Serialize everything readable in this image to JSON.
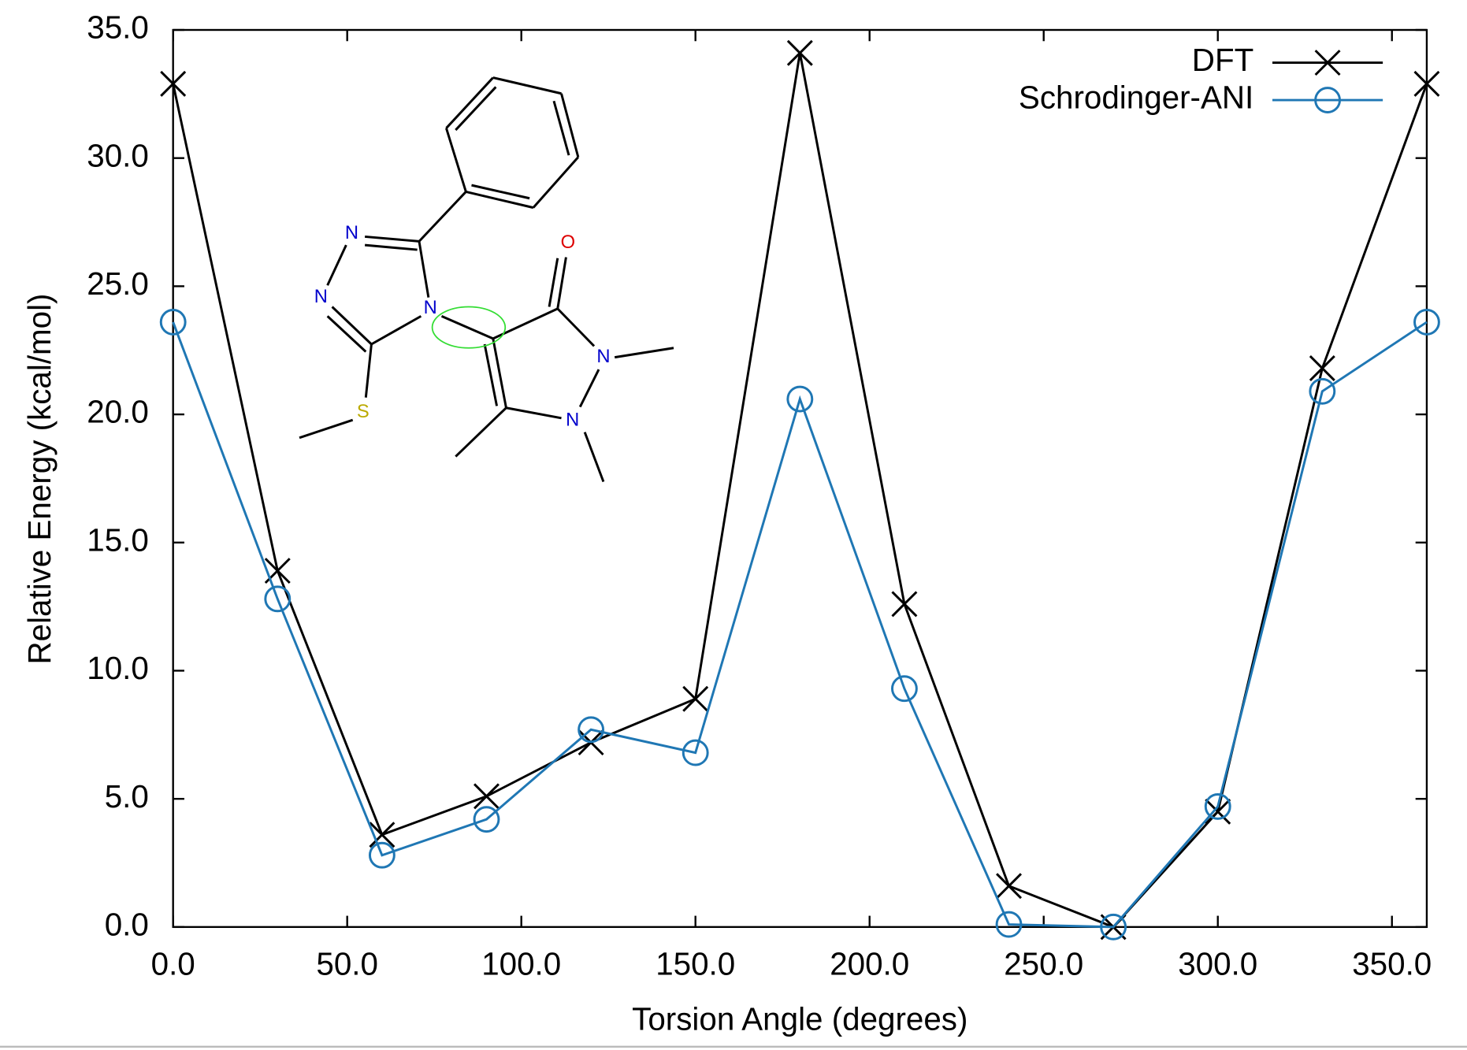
{
  "chart_data": {
    "type": "line",
    "x_label": "Torsion Angle (degrees)",
    "y_label": "Relative Energy (kcal/mol)",
    "x": [
      0,
      30,
      60,
      90,
      120,
      150,
      180,
      210,
      240,
      270,
      300,
      330,
      360
    ],
    "series": [
      {
        "name": "DFT",
        "color": "#000000",
        "marker": "x",
        "values": [
          32.9,
          13.9,
          3.6,
          5.1,
          7.2,
          8.9,
          34.1,
          12.6,
          1.6,
          0.0,
          4.5,
          21.8,
          32.9
        ]
      },
      {
        "name": "Schrodinger-ANI",
        "color": "#1f77b4",
        "marker": "circle",
        "values": [
          23.6,
          12.8,
          2.8,
          4.2,
          7.7,
          6.8,
          20.6,
          9.3,
          0.1,
          0.0,
          4.7,
          20.9,
          23.6
        ]
      }
    ],
    "xlim": [
      0,
      360
    ],
    "ylim": [
      0,
      35
    ],
    "xticks": [
      {
        "value": 0,
        "label": "0.0"
      },
      {
        "value": 50,
        "label": "50.0"
      },
      {
        "value": 100,
        "label": "100.0"
      },
      {
        "value": 150,
        "label": "150.0"
      },
      {
        "value": 200,
        "label": "200.0"
      },
      {
        "value": 250,
        "label": "250.0"
      },
      {
        "value": 300,
        "label": "300.0"
      },
      {
        "value": 350,
        "label": "350.0"
      }
    ],
    "yticks": [
      {
        "value": 0,
        "label": "0.0"
      },
      {
        "value": 5,
        "label": "5.0"
      },
      {
        "value": 10,
        "label": "10.0"
      },
      {
        "value": 15,
        "label": "15.0"
      },
      {
        "value": 20,
        "label": "20.0"
      },
      {
        "value": 25,
        "label": "25.0"
      },
      {
        "value": 30,
        "label": "30.0"
      },
      {
        "value": 35,
        "label": "35.0"
      }
    ],
    "legend": "upper-right",
    "molecule_atoms": [
      "N",
      "N",
      "N",
      "O",
      "N",
      "N",
      "S"
    ]
  }
}
